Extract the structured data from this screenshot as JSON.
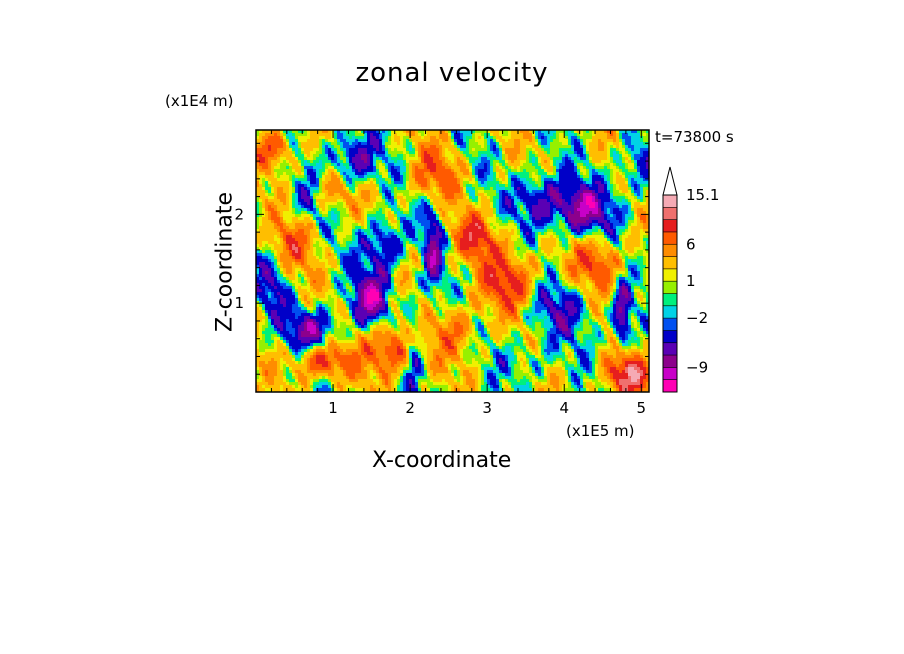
{
  "chart_data": {
    "type": "heatmap",
    "title": "zonal velocity",
    "xlabel": "X-coordinate",
    "ylabel": "Z-coordinate",
    "x_unit": "(x1E5 m)",
    "y_unit": "(x1E4 m)",
    "time_label": "t=73800 s",
    "xlim": [
      0,
      5.1
    ],
    "ylim": [
      0,
      2.95
    ],
    "x_ticks": [
      1,
      2,
      3,
      4,
      5
    ],
    "x_tick_labels": [
      "1",
      "2",
      "3",
      "4",
      "5"
    ],
    "y_ticks": [
      1,
      2
    ],
    "y_tick_labels": [
      "1",
      "2"
    ],
    "colorbar": {
      "levels": [
        -13,
        -11,
        -9,
        -7,
        -5,
        -3,
        -2,
        -1,
        0,
        1,
        2,
        4,
        6,
        8.5,
        11,
        13,
        15.1
      ],
      "colors": [
        "#ff00b4",
        "#c800c8",
        "#8c008c",
        "#5a00b4",
        "#0000c8",
        "#0050f0",
        "#00d2e6",
        "#00f07d",
        "#96f000",
        "#f0f000",
        "#ffbe00",
        "#ff8c00",
        "#ff5a00",
        "#e61e1e",
        "#f0706e",
        "#f5aab4"
      ],
      "labeled_ticks": [
        {
          "value": 15.1,
          "label": "15.1"
        },
        {
          "value": 6,
          "label": "6"
        },
        {
          "value": 1,
          "label": "1"
        },
        {
          "value": -2,
          "label": "−2"
        },
        {
          "value": -9,
          "label": "−9"
        }
      ],
      "extend": "max"
    },
    "field_features": [
      {
        "x": 2.05,
        "z": 0.55,
        "vx": 0.12,
        "vz": 0.5,
        "amp": -6
      },
      {
        "x": 2.3,
        "z": 1.6,
        "vx": 0.12,
        "vz": 0.55,
        "amp": -7
      },
      {
        "x": 1.5,
        "z": 1.05,
        "vx": 0.25,
        "vz": 0.3,
        "amp": -9
      },
      {
        "x": 1.65,
        "z": 1.65,
        "vx": 0.25,
        "vz": 0.3,
        "amp": -8
      },
      {
        "x": 0.75,
        "z": 0.7,
        "vx": 0.35,
        "vz": 0.25,
        "amp": -8
      },
      {
        "x": 1.25,
        "z": 2.6,
        "vx": 0.3,
        "vz": 0.3,
        "amp": -8
      },
      {
        "x": 0.7,
        "z": 2.2,
        "vx": 0.25,
        "vz": 0.25,
        "amp": -7
      },
      {
        "x": 4.2,
        "z": 2.05,
        "vx": 0.45,
        "vz": 0.3,
        "amp": -9
      },
      {
        "x": 3.65,
        "z": 2.2,
        "vx": 0.3,
        "vz": 0.3,
        "amp": -6
      },
      {
        "x": 3.9,
        "z": 0.95,
        "vx": 0.5,
        "vz": 0.35,
        "amp": -5
      },
      {
        "x": 4.75,
        "z": 0.8,
        "vx": 0.12,
        "vz": 0.45,
        "amp": -9
      },
      {
        "x": 4.95,
        "z": 2.55,
        "vx": 0.25,
        "vz": 0.3,
        "amp": -5
      },
      {
        "x": 0.2,
        "z": 1.2,
        "vx": 0.2,
        "vz": 0.35,
        "amp": -5
      },
      {
        "x": 1.75,
        "z": 0.5,
        "vx": 0.35,
        "vz": 0.3,
        "amp": 9
      },
      {
        "x": 3.3,
        "z": 1.25,
        "vx": 0.4,
        "vz": 0.35,
        "amp": 8
      },
      {
        "x": 2.85,
        "z": 1.75,
        "vx": 0.3,
        "vz": 0.25,
        "amp": 7
      },
      {
        "x": 4.8,
        "z": 0.2,
        "vx": 0.25,
        "vz": 0.25,
        "amp": 12
      },
      {
        "x": 0.85,
        "z": 0.35,
        "vx": 0.35,
        "vz": 0.2,
        "amp": 9
      },
      {
        "x": 0.9,
        "z": 2.25,
        "vx": 0.35,
        "vz": 0.25,
        "amp": 7
      },
      {
        "x": 4.45,
        "z": 1.45,
        "vx": 0.35,
        "vz": 0.3,
        "amp": 7
      },
      {
        "x": 2.6,
        "z": 0.7,
        "vx": 0.3,
        "vz": 0.3,
        "amp": 5
      },
      {
        "x": 2.3,
        "z": 2.45,
        "vx": 0.3,
        "vz": 0.3,
        "amp": 6
      },
      {
        "x": 0.25,
        "z": 2.75,
        "vx": 0.25,
        "vz": 0.2,
        "amp": 7
      },
      {
        "x": 3.55,
        "z": 0.35,
        "vx": 0.35,
        "vz": 0.2,
        "amp": -3
      },
      {
        "x": 0.45,
        "z": 1.65,
        "vx": 0.3,
        "vz": 0.3,
        "amp": 5
      }
    ]
  }
}
